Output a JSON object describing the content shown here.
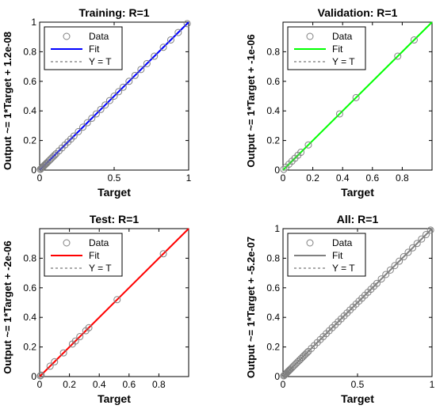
{
  "chart_data": [
    {
      "type": "scatter",
      "title": "Training: R=1",
      "xlabel": "Target",
      "ylabel": "Output ~= 1*Target + 1.2e-08",
      "xlim": [
        0,
        1
      ],
      "ylim": [
        0,
        1
      ],
      "xticks": [
        0,
        0.5,
        1
      ],
      "xtick_labels": [
        "0",
        "0.5",
        "1"
      ],
      "yticks": [
        0,
        0.2,
        0.4,
        0.6,
        0.8,
        1
      ],
      "ytick_labels": [
        "0",
        "0.2",
        "0.4",
        "0.6",
        "0.8",
        "1"
      ],
      "fit_color": "#0000ff",
      "legend": [
        "Data",
        "Fit",
        "Y = T"
      ],
      "legend_position": "top-left",
      "data": [
        0.005,
        0.01,
        0.015,
        0.02,
        0.025,
        0.03,
        0.035,
        0.04,
        0.045,
        0.05,
        0.06,
        0.07,
        0.08,
        0.09,
        0.1,
        0.11,
        0.13,
        0.15,
        0.17,
        0.19,
        0.21,
        0.23,
        0.26,
        0.29,
        0.32,
        0.35,
        0.38,
        0.41,
        0.44,
        0.47,
        0.5,
        0.53,
        0.56,
        0.6,
        0.64,
        0.68,
        0.72,
        0.77,
        0.83,
        0.88,
        0.93,
        0.99
      ]
    },
    {
      "type": "scatter",
      "title": "Validation: R=1",
      "xlabel": "Target",
      "ylabel": "Output ~= 1*Target + -1e-06",
      "xlim": [
        0,
        1
      ],
      "ylim": [
        0,
        1
      ],
      "xticks": [
        0,
        0.2,
        0.4,
        0.6,
        0.8
      ],
      "xtick_labels": [
        "0",
        "0.2",
        "0.4",
        "0.6",
        "0.8"
      ],
      "yticks": [
        0,
        0.2,
        0.4,
        0.6,
        0.8
      ],
      "ytick_labels": [
        "0",
        "0.2",
        "0.4",
        "0.6",
        "0.8"
      ],
      "fit_color": "#00ff00",
      "legend": [
        "Data",
        "Fit",
        "Y = T"
      ],
      "legend_position": "top-left",
      "data": [
        0.005,
        0.02,
        0.04,
        0.06,
        0.08,
        0.1,
        0.12,
        0.17,
        0.38,
        0.49,
        0.77,
        0.88
      ]
    },
    {
      "type": "scatter",
      "title": "Test: R=1",
      "xlabel": "Target",
      "ylabel": "Output ~= 1*Target + -2e-06",
      "xlim": [
        0,
        1
      ],
      "ylim": [
        0,
        1
      ],
      "xticks": [
        0,
        0.2,
        0.4,
        0.6,
        0.8
      ],
      "xtick_labels": [
        "0",
        "0.2",
        "0.4",
        "0.6",
        "0.8"
      ],
      "yticks": [
        0,
        0.2,
        0.4,
        0.6,
        0.8
      ],
      "ytick_labels": [
        "0",
        "0.2",
        "0.4",
        "0.6",
        "0.8"
      ],
      "fit_color": "#ff0000",
      "legend": [
        "Data",
        "Fit",
        "Y = T"
      ],
      "legend_position": "top-left",
      "data": [
        0.005,
        0.01,
        0.07,
        0.1,
        0.16,
        0.22,
        0.24,
        0.27,
        0.31,
        0.33,
        0.52,
        0.83
      ]
    },
    {
      "type": "scatter",
      "title": "All: R=1",
      "xlabel": "Target",
      "ylabel": "Output ~= 1*Target + -5.2e-07",
      "xlim": [
        0,
        1
      ],
      "ylim": [
        0,
        1
      ],
      "xticks": [
        0,
        0.5,
        1
      ],
      "xtick_labels": [
        "0",
        "0.5",
        "1"
      ],
      "yticks": [
        0,
        0.2,
        0.4,
        0.6,
        0.8,
        1
      ],
      "ytick_labels": [
        "0",
        "0.2",
        "0.4",
        "0.6",
        "0.8",
        "1"
      ],
      "fit_color": "#808080",
      "legend": [
        "Data",
        "Fit",
        "Y = T"
      ],
      "legend_position": "top-left",
      "data": [
        0.005,
        0.01,
        0.015,
        0.02,
        0.025,
        0.03,
        0.035,
        0.04,
        0.045,
        0.05,
        0.06,
        0.07,
        0.08,
        0.09,
        0.1,
        0.11,
        0.12,
        0.13,
        0.14,
        0.15,
        0.16,
        0.17,
        0.19,
        0.21,
        0.23,
        0.25,
        0.27,
        0.29,
        0.31,
        0.33,
        0.35,
        0.37,
        0.39,
        0.41,
        0.43,
        0.45,
        0.47,
        0.49,
        0.51,
        0.53,
        0.55,
        0.57,
        0.59,
        0.61,
        0.63,
        0.66,
        0.69,
        0.72,
        0.75,
        0.78,
        0.81,
        0.84,
        0.87,
        0.9,
        0.93,
        0.96,
        0.99
      ]
    }
  ]
}
